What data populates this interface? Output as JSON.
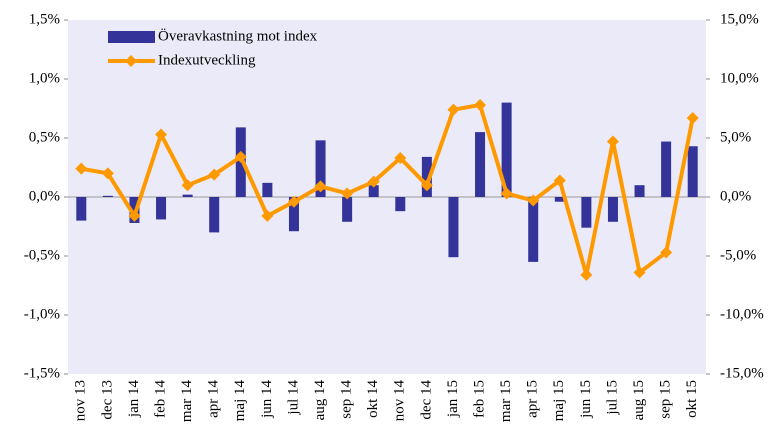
{
  "chart_data": {
    "type": "bar_line",
    "categories": [
      "nov 13",
      "dec 13",
      "jan 14",
      "feb 14",
      "mar 14",
      "apr 14",
      "maj 14",
      "jun 14",
      "jul 14",
      "aug 14",
      "sep 14",
      "okt 14",
      "nov 14",
      "dec 14",
      "jan 15",
      "feb 15",
      "mar 15",
      "apr 15",
      "maj 15",
      "jun 15",
      "jul 15",
      "aug 15",
      "sep 15",
      "okt 15"
    ],
    "series": [
      {
        "name": "Överavkastning mot index",
        "type": "bar",
        "color": "#333399",
        "values": [
          -0.2,
          0.01,
          -0.22,
          -0.19,
          0.02,
          -0.3,
          0.59,
          0.12,
          -0.29,
          0.48,
          -0.21,
          0.1,
          -0.12,
          0.34,
          -0.51,
          0.55,
          0.8,
          -0.55,
          -0.04,
          -0.26,
          -0.21,
          0.1,
          0.47,
          0.43
        ]
      },
      {
        "name": "Indexutveckling",
        "type": "line",
        "axis": "y2",
        "color": "#ff9900",
        "values": [
          2.4,
          2.0,
          -1.6,
          5.3,
          1.0,
          1.9,
          3.4,
          -1.6,
          -0.4,
          0.9,
          0.3,
          1.3,
          3.3,
          1.0,
          7.4,
          7.8,
          0.3,
          -0.3,
          1.4,
          -6.6,
          4.7,
          -6.4,
          -4.7,
          6.7
        ]
      }
    ],
    "ylim": [
      -1.5,
      1.5
    ],
    "yticks": [
      {
        "value": 1.5,
        "label": "1,5%"
      },
      {
        "value": 1.0,
        "label": "1,0%"
      },
      {
        "value": 0.5,
        "label": "0,5%"
      },
      {
        "value": 0,
        "label": "0,0%"
      },
      {
        "value": -0.5,
        "label": "-0,5%"
      },
      {
        "value": -1.0,
        "label": "-1,0%"
      },
      {
        "value": -1.5,
        "label": "-1,5%"
      }
    ],
    "y2lim": [
      -15,
      15
    ],
    "y2ticks": [
      {
        "value": 15,
        "label": "15,0%"
      },
      {
        "value": 10,
        "label": "10,0%"
      },
      {
        "value": 5,
        "label": "5,0%"
      },
      {
        "value": 0,
        "label": "0,0%"
      },
      {
        "value": -5,
        "label": "-5,0%"
      },
      {
        "value": -10,
        "label": "-10,0%"
      },
      {
        "value": -15,
        "label": "-15,0%"
      }
    ],
    "legend": "top-left"
  }
}
